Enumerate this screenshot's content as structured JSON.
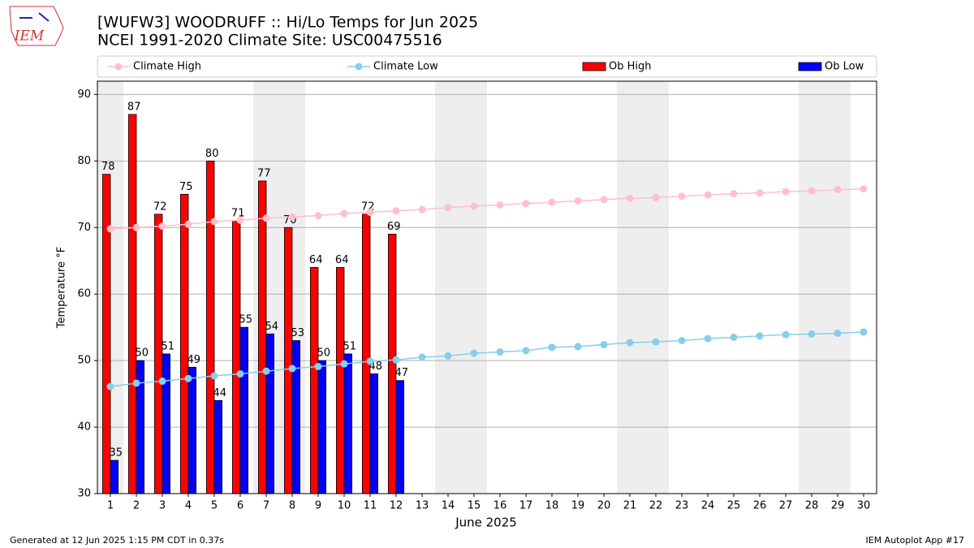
{
  "logo": "IEM",
  "footer_left": "Generated at 12 Jun 2025 1:15 PM CDT in 0.37s",
  "footer_right": "IEM Autoplot App #17",
  "chart_data": {
    "type": "bar",
    "title": "[WUFW3] WOODRUFF :: Hi/Lo Temps for Jun 2025",
    "subtitle": "NCEI 1991-2020 Climate Site: USC00475516",
    "xlabel": "June 2025",
    "ylabel": "Temperature °F",
    "x": [
      1,
      2,
      3,
      4,
      5,
      6,
      7,
      8,
      9,
      10,
      11,
      12,
      13,
      14,
      15,
      16,
      17,
      18,
      19,
      20,
      21,
      22,
      23,
      24,
      25,
      26,
      27,
      28,
      29,
      30
    ],
    "xlim": [
      0.5,
      30.5
    ],
    "xticks": [
      1,
      2,
      3,
      4,
      5,
      6,
      7,
      8,
      9,
      10,
      11,
      12,
      13,
      14,
      15,
      16,
      17,
      18,
      19,
      20,
      21,
      22,
      23,
      24,
      25,
      26,
      27,
      28,
      29,
      30
    ],
    "ylim": [
      30,
      92
    ],
    "yticks": [
      30,
      40,
      50,
      60,
      70,
      80,
      90
    ],
    "grid": true,
    "shaded_days": [
      1,
      7,
      8,
      14,
      15,
      21,
      22,
      28,
      29
    ],
    "shade_color": "#eeeeee",
    "series": [
      {
        "name": "Climate High",
        "type": "line",
        "color": "#ffc0cb",
        "values": [
          69.8,
          70.0,
          70.2,
          70.5,
          70.9,
          71.1,
          71.4,
          71.6,
          71.8,
          72.1,
          72.3,
          72.5,
          72.7,
          73.0,
          73.2,
          73.4,
          73.6,
          73.8,
          74.0,
          74.2,
          74.4,
          74.5,
          74.7,
          74.9,
          75.1,
          75.2,
          75.4,
          75.5,
          75.7,
          75.8
        ]
      },
      {
        "name": "Climate Low",
        "type": "line",
        "color": "#87ceeb",
        "values": [
          46.1,
          46.6,
          46.9,
          47.3,
          47.7,
          48.0,
          48.4,
          48.8,
          49.1,
          49.5,
          49.9,
          50.1,
          50.5,
          50.7,
          51.1,
          51.3,
          51.5,
          52.0,
          52.1,
          52.4,
          52.7,
          52.8,
          53.0,
          53.3,
          53.5,
          53.7,
          53.9,
          54.0,
          54.1,
          54.3
        ]
      },
      {
        "name": "Ob High",
        "type": "bar",
        "color": "#ff0000",
        "values": [
          78,
          87,
          72,
          75,
          80,
          71,
          77,
          70,
          64,
          64,
          72,
          69,
          null,
          null,
          null,
          null,
          null,
          null,
          null,
          null,
          null,
          null,
          null,
          null,
          null,
          null,
          null,
          null,
          null,
          null
        ]
      },
      {
        "name": "Ob Low",
        "type": "bar",
        "color": "#0000ff",
        "values": [
          35,
          50,
          51,
          49,
          44,
          55,
          54,
          53,
          50,
          51,
          48,
          47,
          null,
          null,
          null,
          null,
          null,
          null,
          null,
          null,
          null,
          null,
          null,
          null,
          null,
          null,
          null,
          null,
          null,
          null
        ]
      }
    ]
  }
}
